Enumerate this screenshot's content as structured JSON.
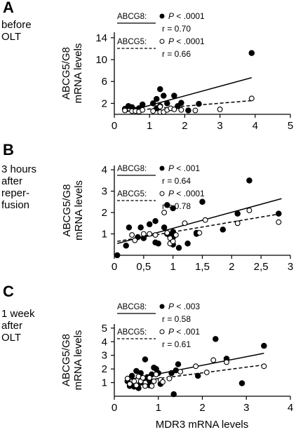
{
  "xlabel": "MDR3 mRNA levels",
  "chart_data": [
    {
      "type": "scatter",
      "panel": "A",
      "desc_lines": [
        "before",
        "OLT"
      ],
      "ylabel_lines": [
        "ABCG5/G8",
        "mRNA levels"
      ],
      "xlim": [
        0,
        5
      ],
      "ylim": [
        0,
        15
      ],
      "xticks": [
        0,
        1,
        2,
        3,
        4,
        5
      ],
      "xtick_labels": [
        "0",
        "1",
        "2",
        "3",
        "4",
        "5"
      ],
      "yticks": [
        2,
        6,
        10,
        14
      ],
      "ytick_labels": [
        "2",
        "6",
        "10",
        "14"
      ],
      "legend": [
        {
          "name": "ABCG8:",
          "p_prefix": "P",
          "p_text": " < .0001",
          "r": "r = 0.70"
        },
        {
          "name": "ABCG5:",
          "p_prefix": "P",
          "p_text": " < .0001",
          "r": "r = 0.66"
        }
      ],
      "series": [
        {
          "name": "ABCG8",
          "marker": "filled",
          "line": "solid",
          "fit": [
            [
              0.3,
              0.4
            ],
            [
              3.9,
              6.7
            ]
          ],
          "points": [
            [
              0.3,
              1.0
            ],
            [
              0.4,
              1.5
            ],
            [
              0.5,
              1.3
            ],
            [
              0.6,
              0.8
            ],
            [
              0.7,
              0.6
            ],
            [
              0.7,
              1.1
            ],
            [
              0.8,
              1.8
            ],
            [
              1.1,
              2.0
            ],
            [
              1.2,
              1.1
            ],
            [
              1.2,
              2.8
            ],
            [
              1.3,
              1.5
            ],
            [
              1.3,
              4.6
            ],
            [
              1.4,
              3.4
            ],
            [
              1.5,
              2.0
            ],
            [
              1.7,
              3.4
            ],
            [
              1.8,
              1.5
            ],
            [
              1.9,
              2.1
            ],
            [
              2.1,
              0.7
            ],
            [
              2.4,
              1.9
            ],
            [
              3.9,
              11.2
            ]
          ]
        },
        {
          "name": "ABCG5",
          "marker": "open",
          "line": "dashed",
          "fit": [
            [
              0.3,
              0.6
            ],
            [
              3.9,
              2.5
            ]
          ],
          "points": [
            [
              0.3,
              0.7
            ],
            [
              0.5,
              0.6
            ],
            [
              0.6,
              0.6
            ],
            [
              0.7,
              0.5
            ],
            [
              0.8,
              0.8
            ],
            [
              1.1,
              0.6
            ],
            [
              1.3,
              0.4
            ],
            [
              1.3,
              1.4
            ],
            [
              1.4,
              0.4
            ],
            [
              1.5,
              0.8
            ],
            [
              1.6,
              1.1
            ],
            [
              1.7,
              0.9
            ],
            [
              1.9,
              0.8
            ],
            [
              2.3,
              0.7
            ],
            [
              3.0,
              0.9
            ],
            [
              3.9,
              2.9
            ]
          ]
        }
      ]
    },
    {
      "type": "scatter",
      "panel": "B",
      "desc_lines": [
        "3 hours",
        "after",
        "reper-",
        "fusion"
      ],
      "ylabel_lines": [
        "ABCG5/G8",
        "mRNA levels"
      ],
      "xlim": [
        0,
        3
      ],
      "ylim": [
        0,
        4.2
      ],
      "xticks": [
        0,
        0.5,
        1,
        1.5,
        2,
        2.5,
        3
      ],
      "xtick_labels": [
        "0",
        "0,5",
        "1",
        "1,5",
        "2",
        "2,5",
        "3"
      ],
      "yticks": [
        1,
        2,
        3,
        4
      ],
      "ytick_labels": [
        "1",
        "2",
        "3",
        "4"
      ],
      "legend": [
        {
          "name": "ABCG8:",
          "p_prefix": "P",
          "p_text": " < .001",
          "r": "r = 0.64"
        },
        {
          "name": "ABCG5:",
          "p_prefix": "P",
          "p_text": " < .0001",
          "r": "r = 0.78"
        }
      ],
      "series": [
        {
          "name": "ABCG8",
          "marker": "filled",
          "line": "solid",
          "fit": [
            [
              0.05,
              0.55
            ],
            [
              2.85,
              2.65
            ]
          ],
          "points": [
            [
              0.05,
              0.0
            ],
            [
              0.2,
              0.45
            ],
            [
              0.25,
              1.3
            ],
            [
              0.4,
              0.85
            ],
            [
              0.45,
              1.3
            ],
            [
              0.5,
              0.8
            ],
            [
              0.6,
              1.45
            ],
            [
              0.7,
              0.6
            ],
            [
              0.7,
              1.6
            ],
            [
              0.75,
              0.55
            ],
            [
              0.85,
              1.3
            ],
            [
              0.9,
              2.35
            ],
            [
              0.9,
              1.0
            ],
            [
              0.95,
              0.9
            ],
            [
              1.0,
              1.1
            ],
            [
              1.0,
              0.85
            ],
            [
              1.0,
              0.5
            ],
            [
              1.0,
              2.2
            ],
            [
              1.1,
              0.35
            ],
            [
              1.25,
              0.55
            ],
            [
              1.4,
              1.0
            ],
            [
              1.4,
              1.05
            ],
            [
              1.5,
              2.5
            ],
            [
              1.85,
              1.2
            ],
            [
              2.1,
              1.95
            ],
            [
              2.3,
              3.5
            ],
            [
              2.8,
              1.95
            ]
          ]
        },
        {
          "name": "ABCG5",
          "marker": "open",
          "line": "dashed",
          "fit": [
            [
              0.05,
              0.65
            ],
            [
              2.85,
              1.95
            ]
          ],
          "points": [
            [
              0.3,
              0.95
            ],
            [
              0.35,
              0.7
            ],
            [
              0.5,
              1.0
            ],
            [
              0.6,
              1.0
            ],
            [
              0.7,
              0.95
            ],
            [
              0.85,
              2.0
            ],
            [
              0.9,
              1.05
            ],
            [
              0.95,
              0.8
            ],
            [
              0.95,
              0.55
            ],
            [
              1.0,
              0.65
            ],
            [
              1.05,
              0.95
            ],
            [
              1.2,
              1.5
            ],
            [
              1.45,
              1.05
            ],
            [
              1.55,
              1.65
            ],
            [
              2.1,
              1.5
            ],
            [
              2.3,
              2.1
            ],
            [
              2.8,
              1.55
            ]
          ]
        }
      ]
    },
    {
      "type": "scatter",
      "panel": "C",
      "desc_lines": [
        "1 week",
        "after",
        "OLT"
      ],
      "ylabel_lines": [
        "ABCG5/G8",
        "mRNA levels"
      ],
      "xlim": [
        0,
        4
      ],
      "ylim": [
        0,
        5.3
      ],
      "xticks": [
        0,
        1,
        2,
        3,
        4
      ],
      "xtick_labels": [
        "0",
        "1",
        "2",
        "3",
        "4"
      ],
      "yticks": [
        1,
        2,
        3,
        4,
        5
      ],
      "ytick_labels": [
        "1",
        "2",
        "3",
        "4",
        "5"
      ],
      "legend": [
        {
          "name": "ABCG8:",
          "p_prefix": "P",
          "p_text": " < .003",
          "r": "r = 0.58"
        },
        {
          "name": "ABCG5:",
          "p_prefix": "P",
          "p_text": " < .001",
          "r": "r = 0.61"
        }
      ],
      "series": [
        {
          "name": "ABCG8",
          "marker": "filled",
          "line": "solid",
          "fit": [
            [
              0.3,
              1.2
            ],
            [
              3.4,
              3.15
            ]
          ],
          "points": [
            [
              0.3,
              1.1
            ],
            [
              0.35,
              0.75
            ],
            [
              0.4,
              1.5
            ],
            [
              0.45,
              0.7
            ],
            [
              0.5,
              1.85
            ],
            [
              0.55,
              0.6
            ],
            [
              0.6,
              1.0
            ],
            [
              0.6,
              1.7
            ],
            [
              0.65,
              1.3
            ],
            [
              0.7,
              2.7
            ],
            [
              0.75,
              1.4
            ],
            [
              0.8,
              0.8
            ],
            [
              0.8,
              1.15
            ],
            [
              0.85,
              1.6
            ],
            [
              0.9,
              2.1
            ],
            [
              0.95,
              2.0
            ],
            [
              1.0,
              1.7
            ],
            [
              1.05,
              0.9
            ],
            [
              1.3,
              1.7
            ],
            [
              1.35,
              0.15
            ],
            [
              1.4,
              1.9
            ],
            [
              1.45,
              2.35
            ],
            [
              1.9,
              1.5
            ],
            [
              2.3,
              4.2
            ],
            [
              2.55,
              2.75
            ],
            [
              2.9,
              0.95
            ],
            [
              3.4,
              3.7
            ]
          ]
        },
        {
          "name": "ABCG5",
          "marker": "open",
          "line": "dashed",
          "fit": [
            [
              0.3,
              1.0
            ],
            [
              3.4,
              2.3
            ]
          ],
          "points": [
            [
              0.3,
              1.3
            ],
            [
              0.35,
              0.9
            ],
            [
              0.45,
              1.1
            ],
            [
              0.5,
              0.8
            ],
            [
              0.55,
              1.45
            ],
            [
              0.6,
              1.1
            ],
            [
              0.65,
              1.35
            ],
            [
              0.7,
              0.75
            ],
            [
              0.8,
              1.35
            ],
            [
              0.85,
              0.75
            ],
            [
              0.9,
              1.1
            ],
            [
              0.95,
              1.6
            ],
            [
              1.05,
              1.2
            ],
            [
              1.1,
              1.05
            ],
            [
              1.25,
              1.3
            ],
            [
              1.5,
              1.8
            ],
            [
              1.85,
              2.2
            ],
            [
              2.1,
              1.75
            ],
            [
              2.25,
              2.65
            ],
            [
              2.55,
              2.5
            ],
            [
              3.4,
              2.2
            ]
          ]
        }
      ]
    }
  ]
}
